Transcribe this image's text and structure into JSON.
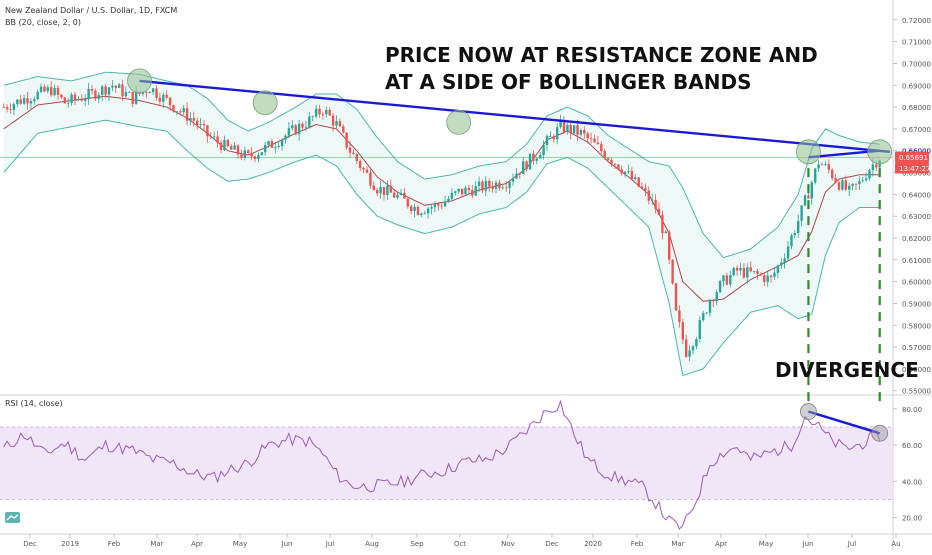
{
  "header": {
    "symbol_line": "New Zealand Dollar / U.S. Dollar, 1D, FXCM",
    "bb_label": "BB (20, close, 2, 0)",
    "rsi_label": "RSI (14, close)"
  },
  "annotations": {
    "headline_1": "PRICE NOW AT RESISTANCE ZONE AND",
    "headline_2": "AT A SIDE OF BOLLINGER BANDS",
    "divergence": "DIVERGENCE"
  },
  "price_badges": {
    "resistance_value": "0.66000",
    "last_price": "0.65691",
    "countdown": "13:47:27"
  },
  "colors": {
    "up_candle": "#26a69a",
    "down_candle": "#ef5350",
    "bb_band": "#4db6ac",
    "bb_fill": "#e0f2f1",
    "bb_basis": "#b0464a",
    "trendline": "#1a1ad6",
    "rsi_line": "#9c5bb5",
    "rsi_band_fill": "#ede0f5",
    "divergence_dash": "#2e8b2e",
    "badge_red": "#ef5350",
    "marker_fill": "#8fbf8f"
  },
  "chart_data": [
    {
      "type": "candlestick",
      "title": "New Zealand Dollar / U.S. Dollar, 1D, FXCM",
      "indicator": "BB (20, close, 2, 0)",
      "x_ticks": [
        "Dec",
        "2019",
        "Feb",
        "Mar",
        "Apr",
        "May",
        "Jun",
        "Jul",
        "Aug",
        "Sep",
        "Oct",
        "Nov",
        "Dec",
        "2020",
        "Feb",
        "Mar",
        "Apr",
        "May",
        "Jun",
        "Jul",
        "Au"
      ],
      "y_ticks": [
        "0.72000",
        "0.71000",
        "0.70000",
        "0.69000",
        "0.68000",
        "0.67000",
        "0.66000",
        "0.65000",
        "0.64000",
        "0.63000",
        "0.62000",
        "0.61000",
        "0.60000",
        "0.59000",
        "0.58000",
        "0.57000",
        "0.56000",
        "0.55000"
      ],
      "ylim": [
        0.5485,
        0.7245
      ],
      "price_path": [
        [
          0,
          0.68
        ],
        [
          8,
          0.685
        ],
        [
          14,
          0.688
        ],
        [
          18,
          0.682
        ],
        [
          26,
          0.686
        ],
        [
          32,
          0.69
        ],
        [
          38,
          0.684
        ],
        [
          43,
          0.689
        ],
        [
          48,
          0.683
        ],
        [
          52,
          0.678
        ],
        [
          56,
          0.674
        ],
        [
          60,
          0.667
        ],
        [
          66,
          0.661
        ],
        [
          72,
          0.657
        ],
        [
          78,
          0.662
        ],
        [
          84,
          0.668
        ],
        [
          90,
          0.674
        ],
        [
          94,
          0.679
        ],
        [
          98,
          0.672
        ],
        [
          102,
          0.66
        ],
        [
          106,
          0.651
        ],
        [
          110,
          0.643
        ],
        [
          116,
          0.639
        ],
        [
          122,
          0.633
        ],
        [
          128,
          0.635
        ],
        [
          134,
          0.641
        ],
        [
          140,
          0.643
        ],
        [
          148,
          0.646
        ],
        [
          156,
          0.657
        ],
        [
          164,
          0.671
        ],
        [
          170,
          0.668
        ],
        [
          176,
          0.66
        ],
        [
          182,
          0.652
        ],
        [
          188,
          0.642
        ],
        [
          192,
          0.634
        ],
        [
          195,
          0.62
        ],
        [
          198,
          0.585
        ],
        [
          201,
          0.568
        ],
        [
          204,
          0.576
        ],
        [
          208,
          0.592
        ],
        [
          212,
          0.6
        ],
        [
          216,
          0.605
        ],
        [
          222,
          0.603
        ],
        [
          226,
          0.601
        ],
        [
          230,
          0.613
        ],
        [
          234,
          0.628
        ],
        [
          237,
          0.641
        ],
        [
          240,
          0.655
        ],
        [
          243,
          0.651
        ],
        [
          246,
          0.645
        ],
        [
          249,
          0.641
        ],
        [
          252,
          0.645
        ],
        [
          255,
          0.652
        ],
        [
          258,
          0.657
        ]
      ],
      "bb_upper": [
        [
          0,
          0.69
        ],
        [
          10,
          0.694
        ],
        [
          20,
          0.692
        ],
        [
          30,
          0.696
        ],
        [
          40,
          0.695
        ],
        [
          48,
          0.692
        ],
        [
          54,
          0.69
        ],
        [
          60,
          0.684
        ],
        [
          66,
          0.674
        ],
        [
          72,
          0.669
        ],
        [
          78,
          0.673
        ],
        [
          86,
          0.68
        ],
        [
          92,
          0.686
        ],
        [
          98,
          0.686
        ],
        [
          104,
          0.679
        ],
        [
          110,
          0.666
        ],
        [
          116,
          0.655
        ],
        [
          124,
          0.647
        ],
        [
          132,
          0.649
        ],
        [
          140,
          0.653
        ],
        [
          148,
          0.655
        ],
        [
          154,
          0.663
        ],
        [
          160,
          0.676
        ],
        [
          166,
          0.68
        ],
        [
          172,
          0.676
        ],
        [
          178,
          0.667
        ],
        [
          184,
          0.661
        ],
        [
          190,
          0.655
        ],
        [
          196,
          0.653
        ],
        [
          200,
          0.643
        ],
        [
          206,
          0.622
        ],
        [
          212,
          0.611
        ],
        [
          220,
          0.615
        ],
        [
          228,
          0.625
        ],
        [
          234,
          0.64
        ],
        [
          238,
          0.661
        ],
        [
          242,
          0.67
        ],
        [
          246,
          0.667
        ],
        [
          252,
          0.664
        ],
        [
          258,
          0.663
        ]
      ],
      "bb_lower": [
        [
          0,
          0.65
        ],
        [
          10,
          0.668
        ],
        [
          20,
          0.671
        ],
        [
          30,
          0.674
        ],
        [
          40,
          0.671
        ],
        [
          48,
          0.669
        ],
        [
          54,
          0.66
        ],
        [
          60,
          0.652
        ],
        [
          66,
          0.646
        ],
        [
          72,
          0.647
        ],
        [
          78,
          0.65
        ],
        [
          86,
          0.655
        ],
        [
          92,
          0.658
        ],
        [
          98,
          0.653
        ],
        [
          104,
          0.64
        ],
        [
          110,
          0.63
        ],
        [
          116,
          0.626
        ],
        [
          124,
          0.622
        ],
        [
          132,
          0.625
        ],
        [
          140,
          0.631
        ],
        [
          148,
          0.634
        ],
        [
          154,
          0.641
        ],
        [
          160,
          0.654
        ],
        [
          166,
          0.657
        ],
        [
          172,
          0.652
        ],
        [
          178,
          0.643
        ],
        [
          184,
          0.634
        ],
        [
          190,
          0.625
        ],
        [
          196,
          0.59
        ],
        [
          200,
          0.557
        ],
        [
          206,
          0.56
        ],
        [
          212,
          0.572
        ],
        [
          220,
          0.586
        ],
        [
          228,
          0.589
        ],
        [
          234,
          0.583
        ],
        [
          238,
          0.585
        ],
        [
          242,
          0.612
        ],
        [
          246,
          0.627
        ],
        [
          252,
          0.634
        ],
        [
          258,
          0.634
        ]
      ],
      "bb_basis": [
        [
          0,
          0.67
        ],
        [
          10,
          0.681
        ],
        [
          20,
          0.683
        ],
        [
          30,
          0.685
        ],
        [
          40,
          0.683
        ],
        [
          48,
          0.68
        ],
        [
          54,
          0.675
        ],
        [
          60,
          0.668
        ],
        [
          66,
          0.66
        ],
        [
          72,
          0.658
        ],
        [
          78,
          0.662
        ],
        [
          86,
          0.668
        ],
        [
          92,
          0.672
        ],
        [
          98,
          0.67
        ],
        [
          104,
          0.66
        ],
        [
          110,
          0.648
        ],
        [
          116,
          0.641
        ],
        [
          124,
          0.635
        ],
        [
          132,
          0.637
        ],
        [
          140,
          0.642
        ],
        [
          148,
          0.645
        ],
        [
          154,
          0.652
        ],
        [
          160,
          0.665
        ],
        [
          166,
          0.669
        ],
        [
          172,
          0.664
        ],
        [
          178,
          0.655
        ],
        [
          184,
          0.648
        ],
        [
          190,
          0.64
        ],
        [
          196,
          0.622
        ],
        [
          200,
          0.6
        ],
        [
          206,
          0.591
        ],
        [
          212,
          0.592
        ],
        [
          220,
          0.601
        ],
        [
          228,
          0.607
        ],
        [
          234,
          0.612
        ],
        [
          238,
          0.623
        ],
        [
          242,
          0.641
        ],
        [
          246,
          0.647
        ],
        [
          252,
          0.649
        ],
        [
          258,
          0.649
        ]
      ],
      "trendlines": [
        {
          "from": [
            40,
            0.692
          ],
          "to": [
            261,
            0.6595
          ]
        },
        {
          "from": [
            237,
            0.657
          ],
          "to": [
            258,
            0.66
          ]
        }
      ],
      "horizontal_line": 0.65691,
      "markers": [
        [
          40,
          0.692
        ],
        [
          77,
          0.682
        ],
        [
          134,
          0.673
        ],
        [
          237,
          0.6595
        ],
        [
          258,
          0.6595
        ]
      ],
      "divergence_verticals": [
        237,
        258
      ]
    },
    {
      "type": "line",
      "title": "RSI (14, close)",
      "y_ticks": [
        "80.00",
        "60.00",
        "40.00",
        "20.00"
      ],
      "ylim": [
        12,
        86
      ],
      "band": [
        30,
        70
      ],
      "rsi_path": [
        [
          0,
          58
        ],
        [
          6,
          66
        ],
        [
          12,
          55
        ],
        [
          18,
          61
        ],
        [
          24,
          52
        ],
        [
          30,
          60
        ],
        [
          38,
          57
        ],
        [
          44,
          52
        ],
        [
          50,
          50
        ],
        [
          56,
          44
        ],
        [
          62,
          42
        ],
        [
          66,
          46
        ],
        [
          72,
          50
        ],
        [
          78,
          60
        ],
        [
          84,
          63
        ],
        [
          90,
          62
        ],
        [
          94,
          55
        ],
        [
          98,
          44
        ],
        [
          102,
          38
        ],
        [
          106,
          37
        ],
        [
          112,
          38
        ],
        [
          118,
          40
        ],
        [
          124,
          44
        ],
        [
          130,
          46
        ],
        [
          136,
          51
        ],
        [
          142,
          52
        ],
        [
          148,
          58
        ],
        [
          154,
          68
        ],
        [
          160,
          79
        ],
        [
          164,
          83
        ],
        [
          168,
          66
        ],
        [
          172,
          52
        ],
        [
          176,
          46
        ],
        [
          180,
          42
        ],
        [
          184,
          40
        ],
        [
          188,
          37
        ],
        [
          192,
          28
        ],
        [
          196,
          18
        ],
        [
          200,
          14
        ],
        [
          204,
          30
        ],
        [
          208,
          50
        ],
        [
          212,
          56
        ],
        [
          216,
          59
        ],
        [
          220,
          52
        ],
        [
          226,
          56
        ],
        [
          232,
          60
        ],
        [
          236,
          76
        ],
        [
          240,
          70
        ],
        [
          244,
          62
        ],
        [
          248,
          58
        ],
        [
          252,
          60
        ],
        [
          256,
          64
        ],
        [
          260,
          67
        ]
      ],
      "markers": [
        [
          237,
          78.5
        ],
        [
          258,
          66.5
        ]
      ],
      "divergence_line": {
        "from": [
          237,
          78.5
        ],
        "to": [
          258,
          66.5
        ]
      }
    }
  ]
}
